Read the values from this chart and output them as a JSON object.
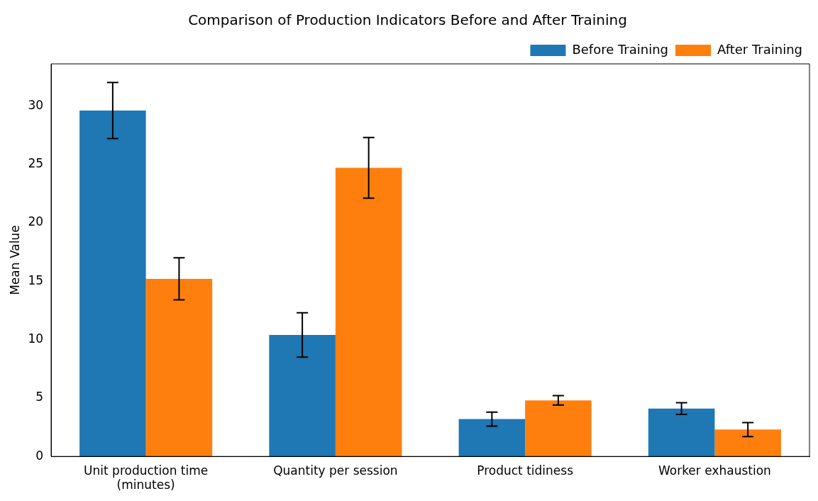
{
  "chart_data": {
    "type": "bar",
    "title": "Comparison of Production Indicators Before and After Training",
    "ylabel": "Mean Value",
    "categories": [
      "Unit production time\n(minutes)",
      "Quantity per session",
      "Product tidiness",
      "Worker exhaustion"
    ],
    "series": [
      {
        "name": "Before Training",
        "color": "#1f77b4",
        "values": [
          29.6,
          10.4,
          3.2,
          4.1
        ],
        "errors": [
          2.4,
          1.9,
          0.6,
          0.5
        ]
      },
      {
        "name": "After Training",
        "color": "#ff7f0e",
        "values": [
          15.2,
          24.7,
          4.8,
          2.3
        ],
        "errors": [
          1.8,
          2.6,
          0.4,
          0.6
        ]
      }
    ],
    "ylim": [
      0,
      33.6
    ],
    "yticks": [
      0,
      5,
      10,
      15,
      20,
      25,
      30
    ],
    "grid": false,
    "legend": "top right"
  }
}
